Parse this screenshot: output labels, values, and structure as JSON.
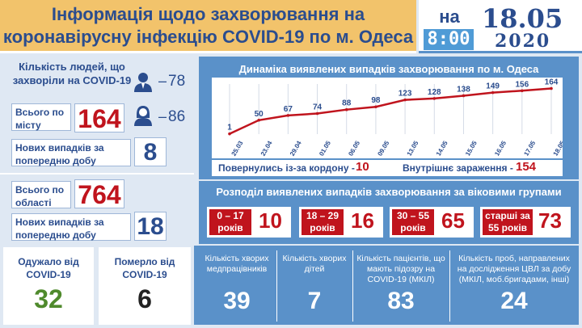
{
  "header": {
    "title_line1": "Інформація щодо захворювання на",
    "title_line2": "коронавірусну інфекцію COVID-19 по м. Одеса"
  },
  "date": {
    "na": "на",
    "time": "8:00",
    "day": "18.05",
    "year": "2020"
  },
  "gender": {
    "label": "Кількість людей, що захворіли на COVID-19",
    "male": "78",
    "female": "86",
    "dash": "–"
  },
  "city": {
    "total_label": "Всього по місту",
    "total": "164",
    "new_label": "Нових випадків за попередню добу",
    "new": "8"
  },
  "region": {
    "total_label": "Всього по області",
    "total": "764",
    "new_label": "Нових випадків за попередню добу",
    "new": "18"
  },
  "recovered": {
    "label": "Одужало від COVID-19",
    "value": "32"
  },
  "died": {
    "label": "Померло від COVID-19",
    "value": "6"
  },
  "chart_section": {
    "title": "Динаміка виявлених випадків захворювання по м. Одеса",
    "returned_label": "Повернулись із-за кордону -",
    "returned": "10",
    "internal_label": "Внутрішнє зараження -",
    "internal": "154"
  },
  "chart_data": {
    "type": "line",
    "categories": [
      "25.03",
      "23.04",
      "29.04",
      "01.05",
      "06.05",
      "09.05",
      "13.05",
      "14.05",
      "15.05",
      "16.05",
      "17.05",
      "18.05"
    ],
    "values": [
      1,
      50,
      67,
      74,
      88,
      98,
      123,
      128,
      138,
      149,
      156,
      164
    ],
    "ylim": [
      0,
      180
    ],
    "title": "Динаміка виявлених випадків захворювання по м. Одеса",
    "color": "#c0141d"
  },
  "age": {
    "title": "Розподіл виявлених випадків захворювання за віковими групами",
    "groups": [
      {
        "label": "0 – 17 років",
        "value": "10"
      },
      {
        "label": "18 – 29 років",
        "value": "16"
      },
      {
        "label": "30 – 55 років",
        "value": "65"
      },
      {
        "label": "старші за 55 років",
        "value": "73"
      }
    ]
  },
  "bottom": [
    {
      "label": "Кількість хворих медпрацівників",
      "value": "39"
    },
    {
      "label": "Кількість хворих дітей",
      "value": "7"
    },
    {
      "label": "Кількість пацієнтів, що мають підозру на COVID-19 (МКІЛ)",
      "value": "83"
    },
    {
      "label": "Кількість проб, направлених на дослідження ЦВЛ за добу (МКІЛ, моб.бригадами, інші)",
      "value": "24"
    }
  ],
  "colors": {
    "accent_red": "#c0141d",
    "brand_blue": "#2b4d8e",
    "panel_blue": "#5a91c9",
    "header_orange": "#f2c36b",
    "green": "#4f8a2c"
  }
}
